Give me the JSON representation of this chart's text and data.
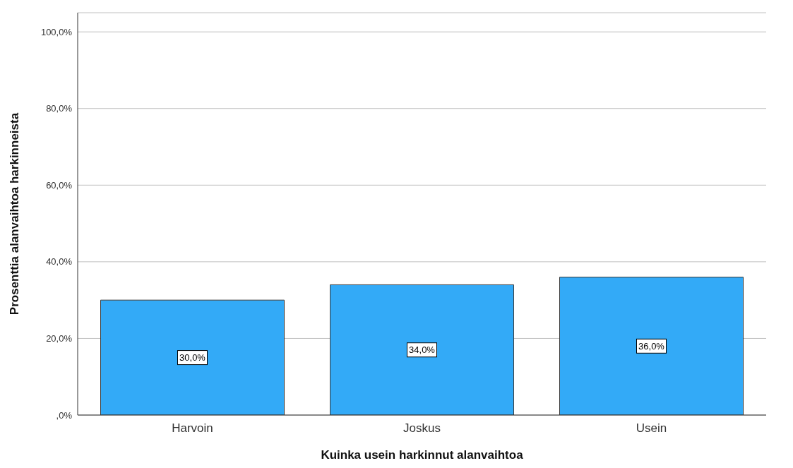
{
  "chart_data": {
    "type": "bar",
    "xlabel": "Kuinka usein harkinnut alanvaihtoa",
    "ylabel": "Prosenttia alanvaihtoa harkinneista",
    "categories": [
      "Harvoin",
      "Joskus",
      "Usein"
    ],
    "values": [
      30,
      34,
      36
    ],
    "color": "#33aaf7",
    "value_labels": [
      "30,0%",
      "34,0%",
      "36,0%"
    ],
    "ylim": [
      0,
      105
    ],
    "yticks": [
      {
        "value": 0,
        "label": ",0%"
      },
      {
        "value": 20,
        "label": "20,0%"
      },
      {
        "value": 40,
        "label": "40,0%"
      },
      {
        "value": 60,
        "label": "60,0%"
      },
      {
        "value": 80,
        "label": "80,0%"
      },
      {
        "value": 100,
        "label": "100,0%"
      }
    ],
    "grid": "y",
    "legend": false
  }
}
